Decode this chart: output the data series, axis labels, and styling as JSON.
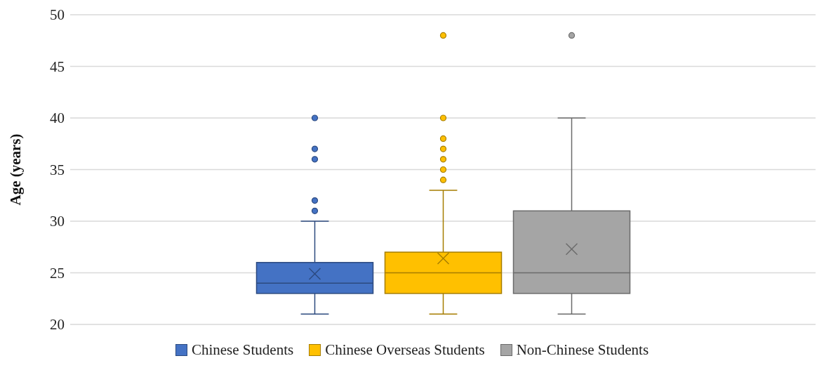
{
  "chart_data": {
    "type": "box",
    "ylabel": "Age (years)",
    "categories": [
      null
    ],
    "ylim": [
      20,
      50
    ],
    "yticks": [
      20,
      25,
      30,
      35,
      40,
      45,
      50
    ],
    "grid": "y",
    "legend": "bottom",
    "tick_labels": "y",
    "series": [
      {
        "name": "Chinese Students",
        "color": "#4472c4",
        "boxes": [
          {
            "low": 21,
            "q1": 23,
            "median": 24,
            "q3": 26,
            "high": 30,
            "mean": 24.9,
            "outliers": [
              31,
              32,
              36,
              37,
              40
            ]
          }
        ]
      },
      {
        "name": "Chinese Overseas Students",
        "color": "#ffc000",
        "boxes": [
          {
            "low": 21,
            "q1": 23,
            "median": 25,
            "q3": 27,
            "high": 33,
            "mean": 26.4,
            "outliers": [
              34,
              35,
              36,
              37,
              38,
              40,
              48
            ]
          }
        ]
      },
      {
        "name": "Non-Chinese Students",
        "color": "#a5a5a5",
        "boxes": [
          {
            "low": 21,
            "q1": 23,
            "median": 25,
            "q3": 31,
            "high": 40,
            "mean": 27.3,
            "outliers": [
              48
            ]
          }
        ]
      }
    ]
  }
}
